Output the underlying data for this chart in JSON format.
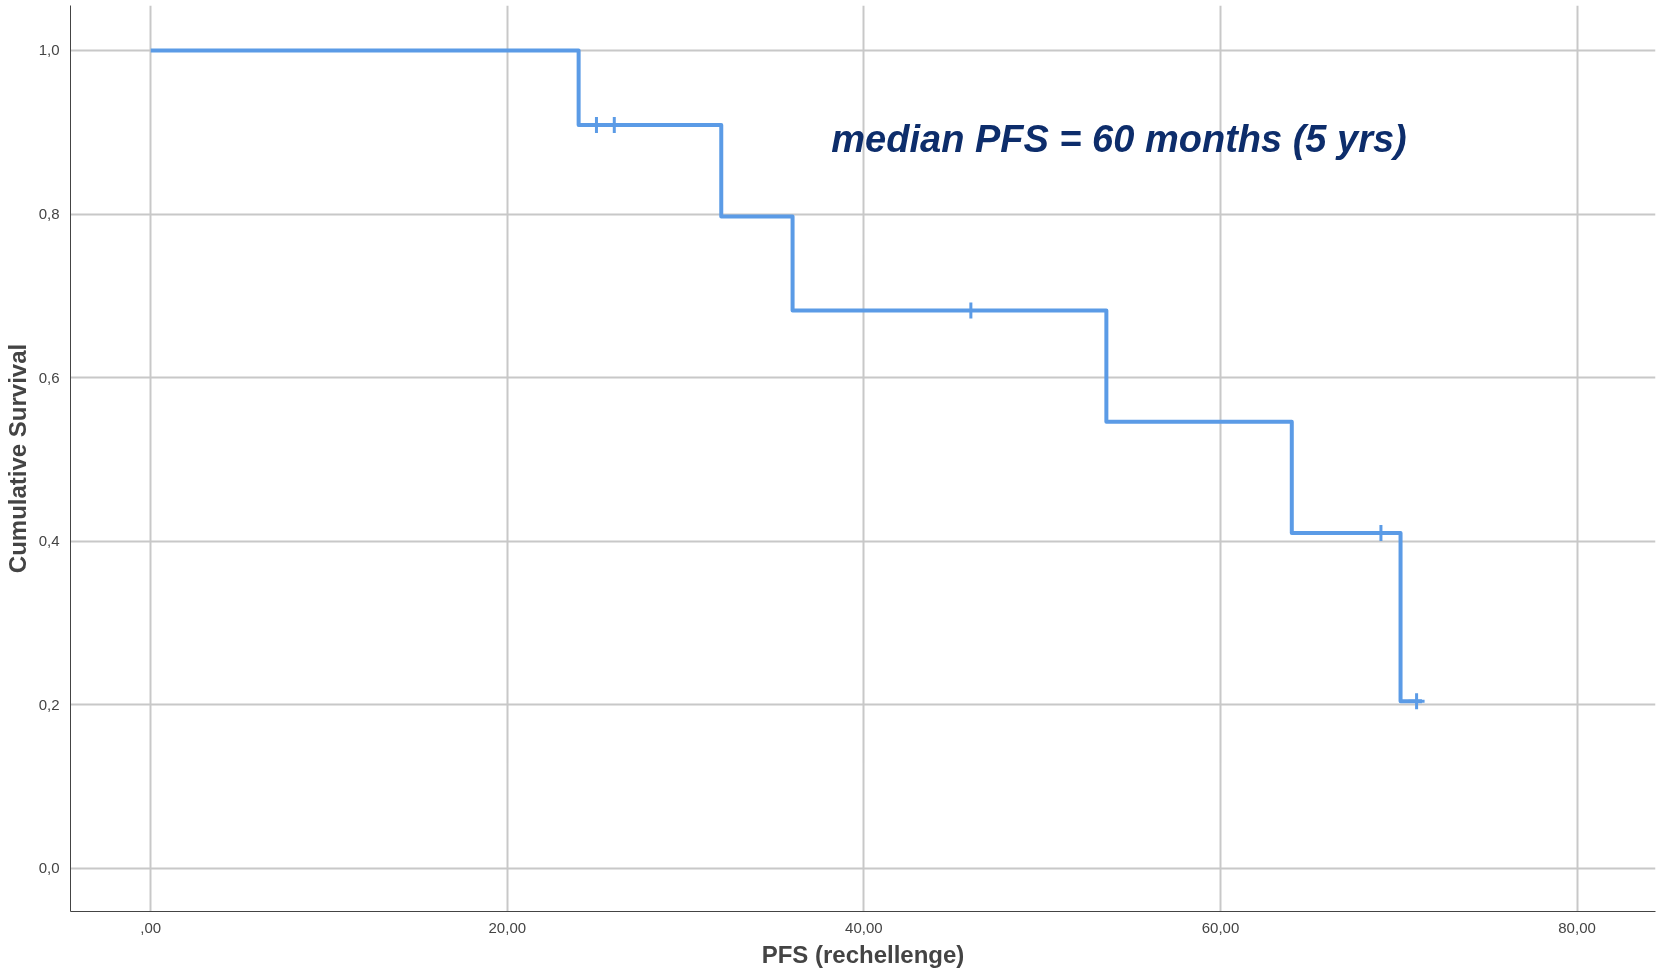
{
  "chart_data": {
    "type": "step",
    "xlabel": "PFS (rechellenge)",
    "ylabel": "Cumulative Survival",
    "series": [
      {
        "color": "#5b9be6",
        "x": [
          0,
          24,
          32,
          36,
          53.6,
          64,
          70.1,
          71.3
        ],
        "values": [
          1.0,
          0.909,
          0.797,
          0.682,
          0.546,
          0.41,
          0.204,
          0.204
        ]
      },
      {
        "type": "scatter",
        "marker": "cross",
        "color": "#5b9be6",
        "x": [
          25,
          26,
          46,
          69,
          71
        ],
        "values": [
          0.909,
          0.909,
          0.682,
          0.41,
          0.204
        ]
      }
    ],
    "annotations": [
      "median PFS = 60 months (5 yrs)"
    ],
    "xlim": [
      -4.5,
      84.4
    ],
    "ylim": [
      -0.053,
      1.055
    ],
    "xticks": [
      {
        "value": 0,
        "label": ",00"
      },
      {
        "value": 20,
        "label": "20,00"
      },
      {
        "value": 40,
        "label": "40,00"
      },
      {
        "value": 60,
        "label": "60,00"
      },
      {
        "value": 80,
        "label": "80,00"
      }
    ],
    "yticks": [
      {
        "value": 0,
        "label": "0,0"
      },
      {
        "value": 0.2,
        "label": "0,2"
      },
      {
        "value": 0.4,
        "label": "0,4"
      },
      {
        "value": 0.6,
        "label": "0,6"
      },
      {
        "value": 0.8,
        "label": "0,8"
      },
      {
        "value": 1.0,
        "label": "1,0"
      }
    ],
    "grid": true
  }
}
